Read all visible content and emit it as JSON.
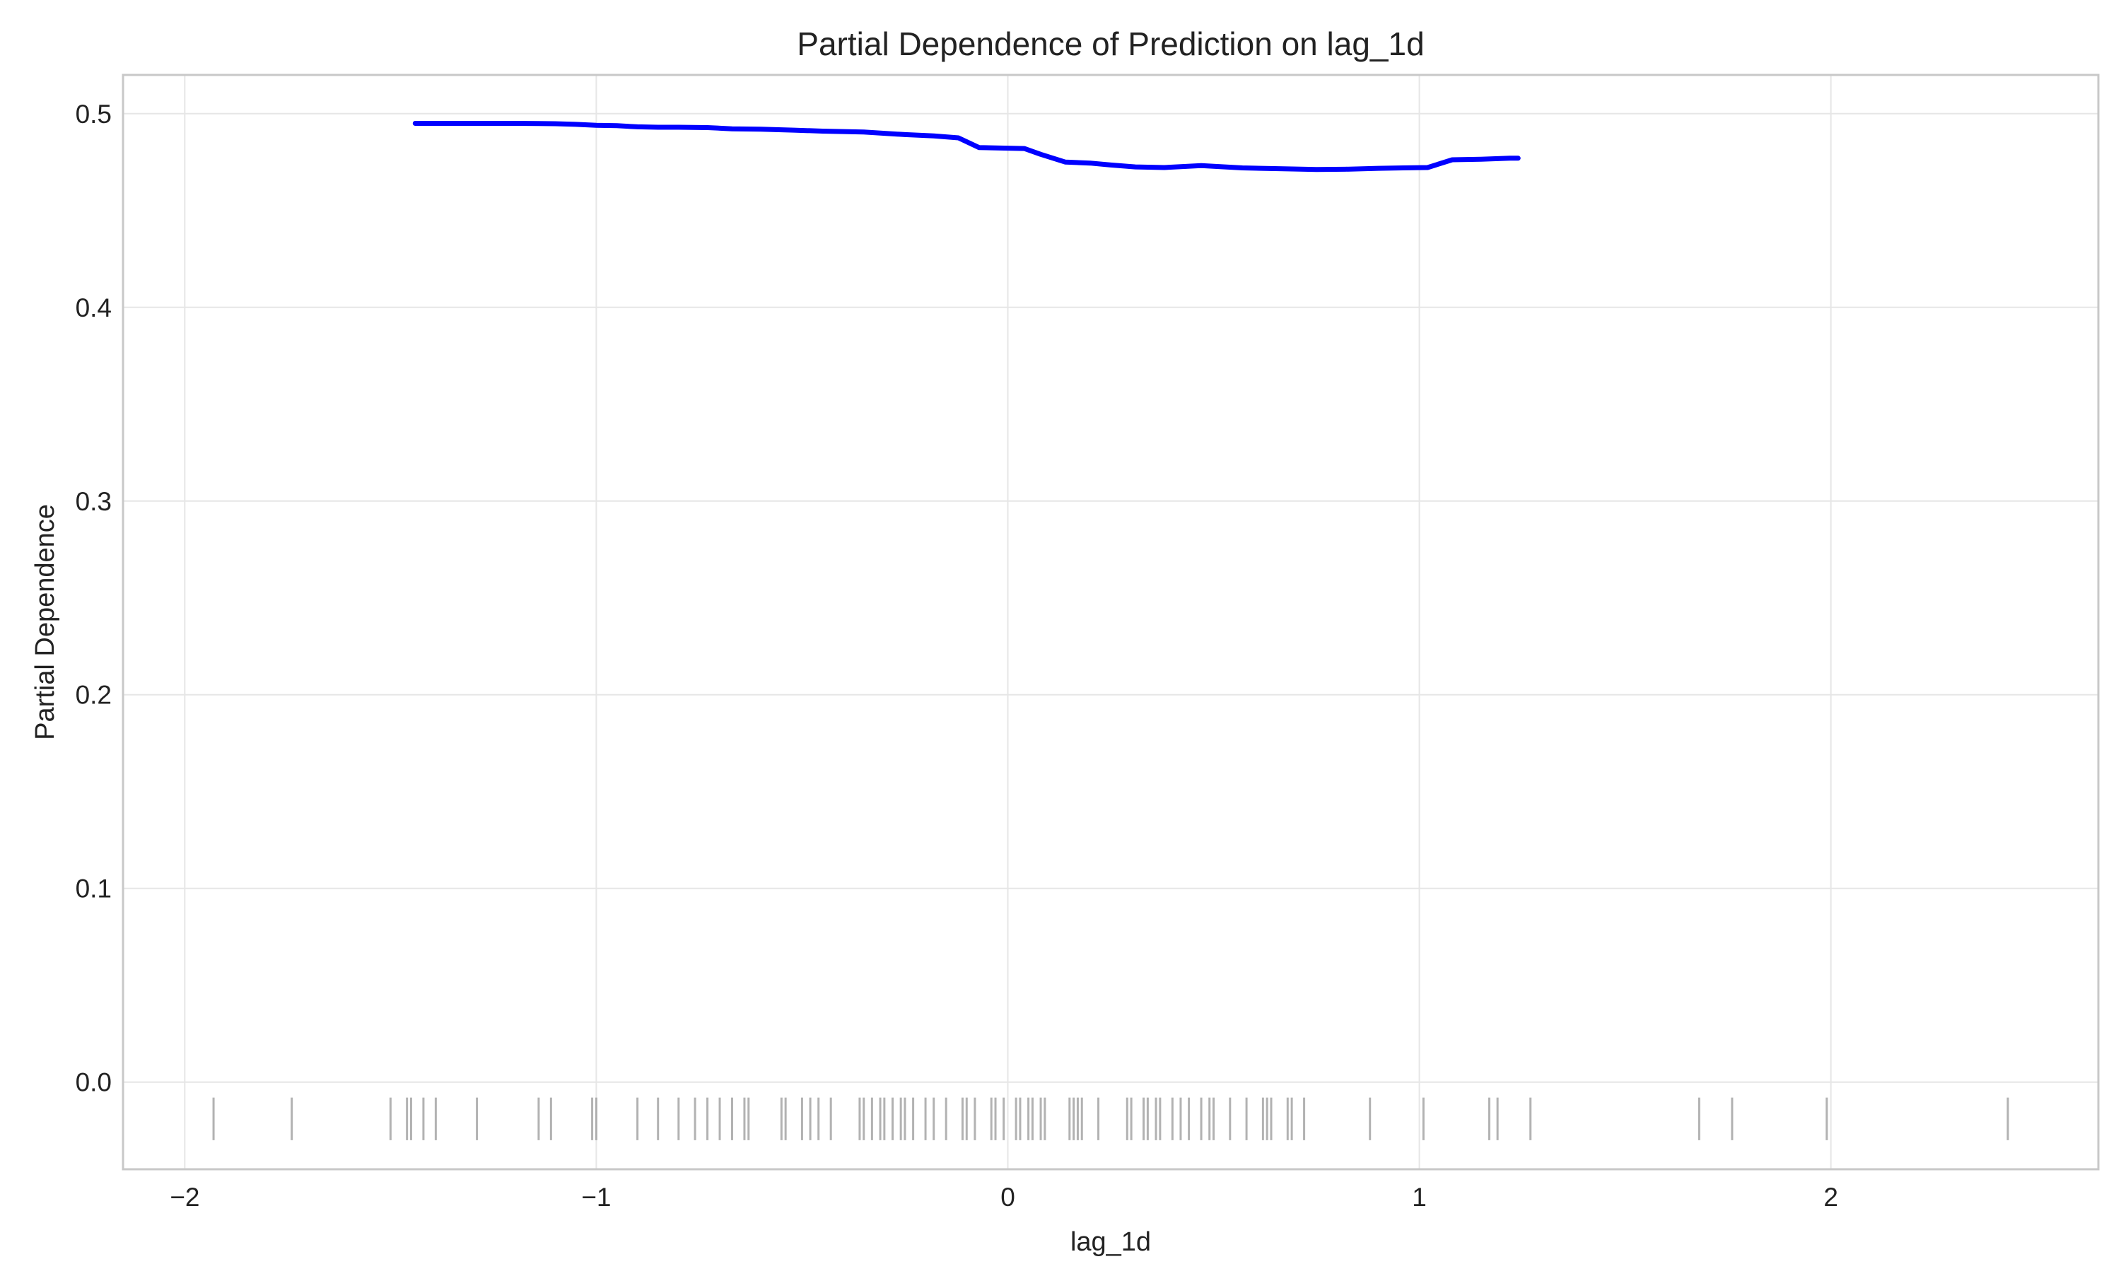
{
  "chart_data": {
    "type": "line",
    "title": "Partial Dependence of Prediction on lag_1d",
    "xlabel": "lag_1d",
    "ylabel": "Partial Dependence",
    "xlim": [
      -2.15,
      2.65
    ],
    "ylim": [
      -0.045,
      0.52
    ],
    "x_ticks": [
      -2,
      -1,
      0,
      1,
      2
    ],
    "x_tick_labels": [
      "−2",
      "−1",
      "0",
      "1",
      "2"
    ],
    "y_ticks": [
      0.0,
      0.1,
      0.2,
      0.3,
      0.4,
      0.5
    ],
    "y_tick_labels": [
      "0.0",
      "0.1",
      "0.2",
      "0.3",
      "0.4",
      "0.5"
    ],
    "grid": true,
    "series": [
      {
        "color": "#0000ff",
        "x": [
          -1.44,
          -1.3,
          -1.2,
          -1.1,
          -1.05,
          -1.0,
          -0.95,
          -0.9,
          -0.85,
          -0.8,
          -0.73,
          -0.67,
          -0.6,
          -0.52,
          -0.45,
          -0.35,
          -0.25,
          -0.18,
          -0.12,
          -0.07,
          0.04,
          0.08,
          0.14,
          0.2,
          0.25,
          0.31,
          0.38,
          0.47,
          0.57,
          0.68,
          0.75,
          0.82,
          0.9,
          0.96,
          1.02,
          1.08,
          1.15,
          1.22,
          1.24
        ],
        "y": [
          0.495,
          0.495,
          0.495,
          0.4948,
          0.4945,
          0.494,
          0.4938,
          0.4932,
          0.493,
          0.493,
          0.4928,
          0.4922,
          0.492,
          0.4915,
          0.491,
          0.4905,
          0.4892,
          0.4885,
          0.4875,
          0.4825,
          0.482,
          0.479,
          0.475,
          0.4745,
          0.4735,
          0.4725,
          0.4722,
          0.4732,
          0.472,
          0.4715,
          0.4712,
          0.4713,
          0.4718,
          0.472,
          0.4722,
          0.4762,
          0.4765,
          0.477,
          0.477
        ]
      }
    ],
    "rug": {
      "color": "#999999",
      "y_range": [
        -0.03,
        -0.008
      ],
      "x": [
        -1.93,
        -1.74,
        -1.5,
        -1.46,
        -1.45,
        -1.42,
        -1.39,
        -1.29,
        -1.14,
        -1.11,
        -1.01,
        -1.0,
        -0.9,
        -0.85,
        -0.8,
        -0.76,
        -0.73,
        -0.7,
        -0.67,
        -0.64,
        -0.63,
        -0.55,
        -0.54,
        -0.5,
        -0.48,
        -0.46,
        -0.43,
        -0.36,
        -0.35,
        -0.33,
        -0.31,
        -0.3,
        -0.28,
        -0.26,
        -0.25,
        -0.23,
        -0.2,
        -0.18,
        -0.15,
        -0.11,
        -0.1,
        -0.08,
        -0.04,
        -0.03,
        -0.01,
        0.02,
        0.03,
        0.05,
        0.06,
        0.08,
        0.09,
        0.15,
        0.16,
        0.17,
        0.18,
        0.22,
        0.29,
        0.3,
        0.33,
        0.34,
        0.36,
        0.37,
        0.4,
        0.42,
        0.44,
        0.47,
        0.49,
        0.5,
        0.54,
        0.58,
        0.62,
        0.63,
        0.64,
        0.68,
        0.69,
        0.72,
        0.88,
        1.01,
        1.17,
        1.19,
        1.27,
        1.68,
        1.76,
        1.99,
        2.43
      ]
    }
  }
}
